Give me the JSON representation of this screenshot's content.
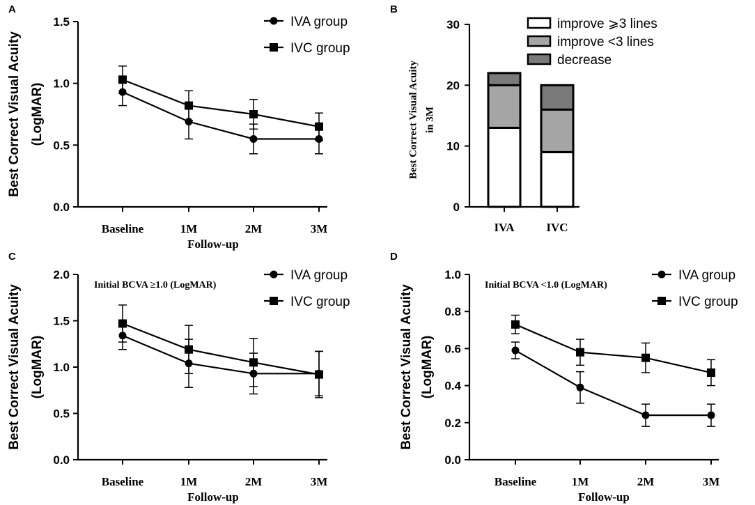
{
  "chart_data": [
    {
      "panel": "A",
      "type": "line",
      "title": "",
      "annotation": "",
      "xlabel": "Follow-up",
      "ylabel_lines": [
        "Best Correct Visual Acuity",
        "(LogMAR)"
      ],
      "categories": [
        "Baseline",
        "1M",
        "2M",
        "3M"
      ],
      "ylim": [
        0,
        1.5
      ],
      "yticks": [
        "0.0",
        "0.5",
        "1.0",
        "1.5"
      ],
      "ytick_values": [
        0,
        0.5,
        1.0,
        1.5
      ],
      "series": [
        {
          "name": "IVA group",
          "marker": "circle",
          "values": [
            0.93,
            0.69,
            0.55,
            0.55
          ],
          "errors": [
            0.11,
            0.14,
            0.12,
            0.12
          ]
        },
        {
          "name": "IVC group",
          "marker": "square",
          "values": [
            1.03,
            0.82,
            0.75,
            0.65
          ],
          "errors": [
            0.11,
            0.12,
            0.12,
            0.11
          ]
        }
      ]
    },
    {
      "panel": "B",
      "type": "bar",
      "stacked": true,
      "title": "",
      "xlabel": "",
      "ylabel_lines": [
        "Best Correct Visual Acuity",
        "in 3M"
      ],
      "categories": [
        "IVA",
        "IVC"
      ],
      "ylim": [
        0,
        30
      ],
      "yticks": [
        "0",
        "10",
        "20",
        "30"
      ],
      "ytick_values": [
        0,
        10,
        20,
        30
      ],
      "series": [
        {
          "name": "improve ⩾3 lines",
          "color": "#ffffff",
          "values": [
            13,
            9
          ]
        },
        {
          "name": "improve <3 lines",
          "color": "#a6a6a6",
          "values": [
            7,
            7
          ]
        },
        {
          "name": "decrease",
          "color": "#7a7a7a",
          "values": [
            2,
            4
          ]
        }
      ]
    },
    {
      "panel": "C",
      "type": "line",
      "title": "",
      "annotation": "Initial BCVA ≥1.0 (LogMAR)",
      "xlabel": "Follow-up",
      "ylabel_lines": [
        "Best Correct Visual Acuity",
        "(LogMAR)"
      ],
      "categories": [
        "Baseline",
        "1M",
        "2M",
        "3M"
      ],
      "ylim": [
        0,
        2.0
      ],
      "yticks": [
        "0.0",
        "0.5",
        "1.0",
        "1.5",
        "2.0"
      ],
      "ytick_values": [
        0,
        0.5,
        1.0,
        1.5,
        2.0
      ],
      "series": [
        {
          "name": "IVA group",
          "marker": "circle",
          "values": [
            1.34,
            1.04,
            0.93,
            0.93
          ],
          "errors": [
            0.15,
            0.26,
            0.22,
            0.24
          ]
        },
        {
          "name": "IVC group",
          "marker": "square",
          "values": [
            1.47,
            1.19,
            1.05,
            0.92
          ],
          "errors": [
            0.2,
            0.26,
            0.26,
            0.25
          ]
        }
      ]
    },
    {
      "panel": "D",
      "type": "line",
      "title": "",
      "annotation": "Initial BCVA <1.0 (LogMAR)",
      "xlabel": "Follow-up",
      "ylabel_lines": [
        "Best Correct Visual Acuity",
        "(LogMAR)"
      ],
      "categories": [
        "Baseline",
        "1M",
        "2M",
        "3M"
      ],
      "ylim": [
        0,
        1.0
      ],
      "yticks": [
        "0.0",
        "0.2",
        "0.4",
        "0.6",
        "0.8",
        "1.0"
      ],
      "ytick_values": [
        0,
        0.2,
        0.4,
        0.6,
        0.8,
        1.0
      ],
      "series": [
        {
          "name": "IVA group",
          "marker": "circle",
          "values": [
            0.59,
            0.39,
            0.24,
            0.24
          ],
          "errors": [
            0.045,
            0.085,
            0.06,
            0.06
          ]
        },
        {
          "name": "IVC group",
          "marker": "square",
          "values": [
            0.73,
            0.58,
            0.55,
            0.47
          ],
          "errors": [
            0.05,
            0.07,
            0.08,
            0.07
          ]
        }
      ]
    }
  ]
}
